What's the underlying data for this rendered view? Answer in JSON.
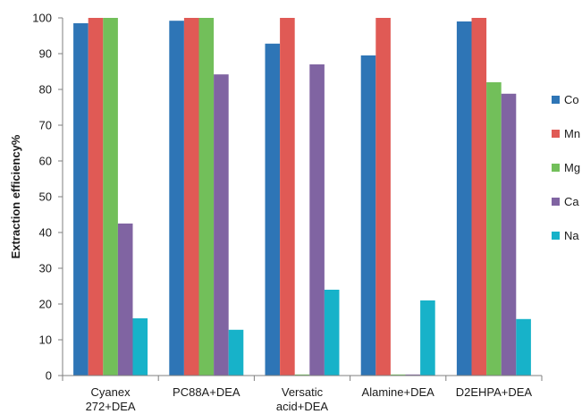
{
  "chart_data": {
    "type": "bar",
    "categories": [
      [
        "Cyanex",
        "272+DEA"
      ],
      [
        "PC88A+DEA"
      ],
      [
        "Versatic",
        "acid+DEA"
      ],
      [
        "Alamine+DEA"
      ],
      [
        "D2EHPA+DEA"
      ]
    ],
    "series": [
      {
        "name": "Co",
        "color": "#2e75b6",
        "values": [
          98.5,
          99.2,
          92.8,
          89.5,
          99.0
        ]
      },
      {
        "name": "Mn",
        "color": "#e05a55",
        "values": [
          100,
          100,
          100,
          100,
          100
        ]
      },
      {
        "name": "Mg",
        "color": "#72bf5a",
        "values": [
          100,
          100,
          0.3,
          0.3,
          82.0
        ]
      },
      {
        "name": "Ca",
        "color": "#8064a2",
        "values": [
          42.5,
          84.2,
          87.0,
          0.3,
          78.8
        ]
      },
      {
        "name": "Na",
        "color": "#17b2c9",
        "values": [
          16.0,
          12.8,
          24.0,
          21.0,
          15.8
        ]
      }
    ],
    "ylabel": "Extraction efficiency%",
    "xlabel": "",
    "ylim": [
      0,
      100
    ],
    "yticks": [
      0,
      10,
      20,
      30,
      40,
      50,
      60,
      70,
      80,
      90,
      100
    ],
    "grid": false,
    "legend": "right"
  }
}
